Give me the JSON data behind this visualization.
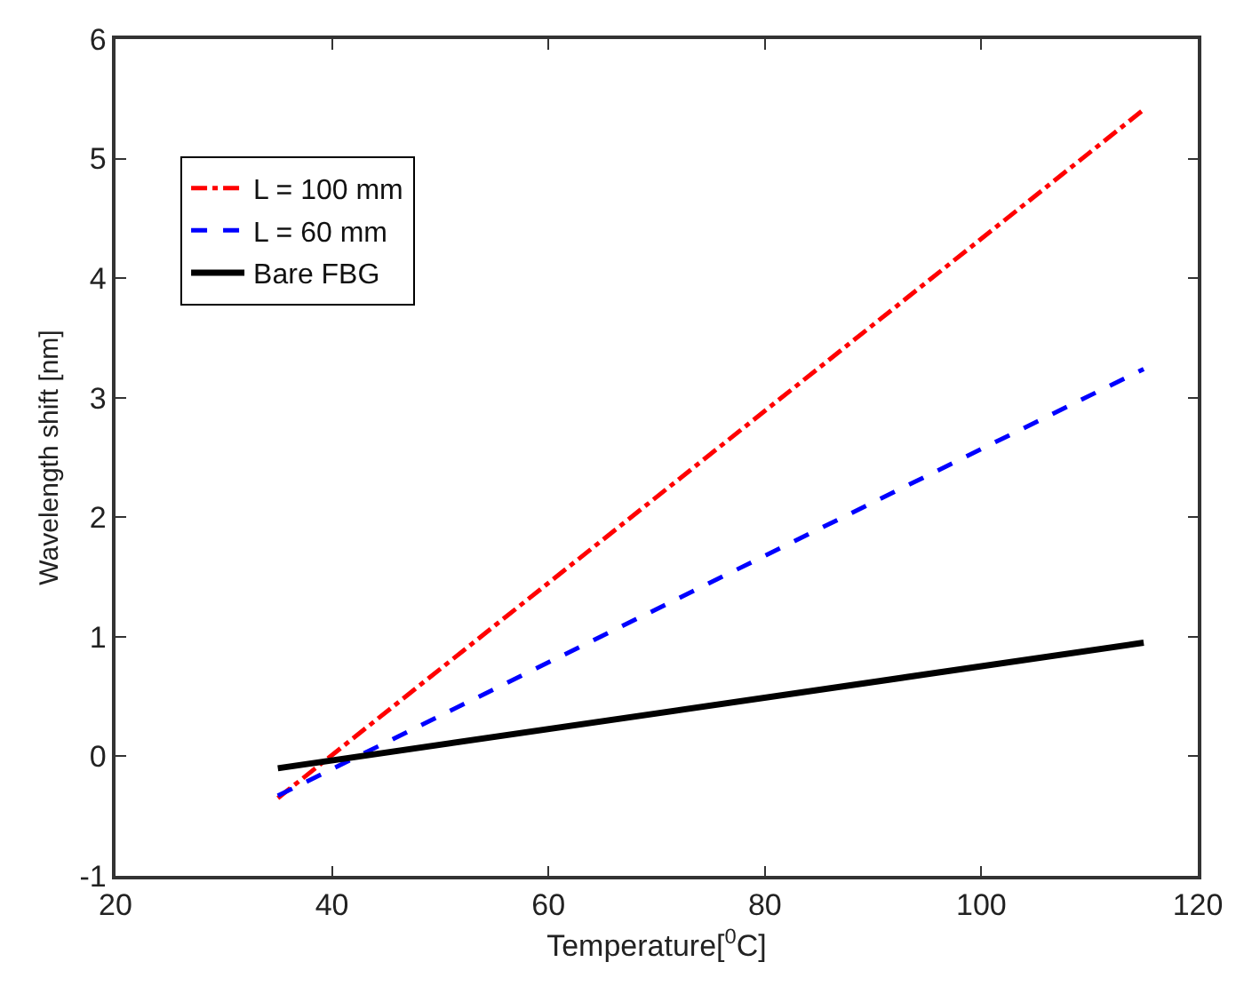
{
  "chart_data": {
    "type": "line",
    "xlabel": "Temperature[$^{0}$C]",
    "ylabel": "Wavelength shift [nm]",
    "x": [
      35,
      115
    ],
    "series": [
      {
        "name": "L = 100 mm",
        "color": "#ff0000",
        "values": [
          -0.35,
          5.41
        ],
        "line_style": "dashdot"
      },
      {
        "name": "L = 60 mm",
        "color": "#0000ff",
        "values": [
          -0.33,
          3.24
        ],
        "line_style": "dashed"
      },
      {
        "name": "Bare FBG",
        "color": "#000000",
        "values": [
          -0.1,
          0.95
        ],
        "line_style": "solid"
      }
    ],
    "xlim": [
      20,
      120
    ],
    "xticks": [
      20,
      40,
      60,
      80,
      100,
      120
    ],
    "ylim": [
      -1,
      6
    ],
    "yticks": [
      -1,
      0,
      1,
      2,
      3,
      4,
      5,
      6
    ],
    "legend": "top left",
    "marker": "none"
  }
}
